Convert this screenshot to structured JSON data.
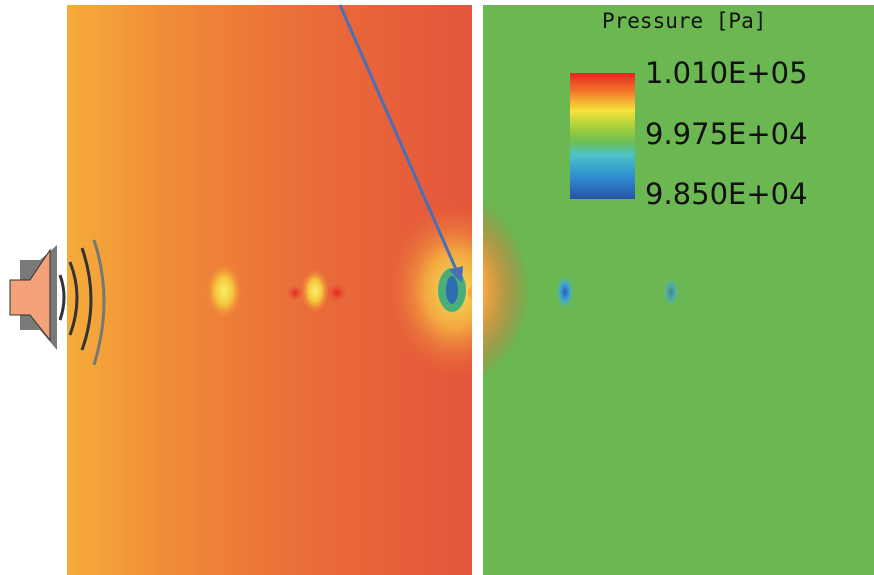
{
  "legend": {
    "title": "Pressure [Pa]",
    "labels": [
      "1.010E+05",
      "9.975E+04",
      "9.850E+04"
    ]
  }
}
